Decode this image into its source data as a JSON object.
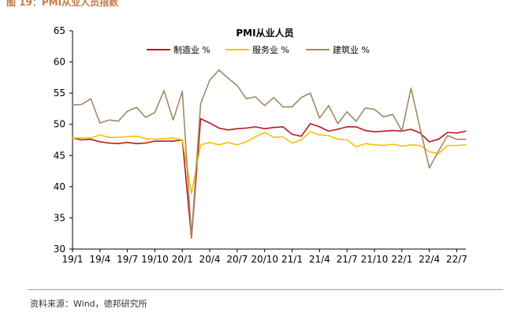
{
  "figure_header": "图 19：PMI从业人员指数",
  "source_note": "资料来源：Wind，德邦研究所",
  "chart_data": {
    "type": "line",
    "title": "PMI从业人员",
    "legend_position": "top-center",
    "grid": false,
    "ylim": [
      30,
      65
    ],
    "yticks": [
      30,
      35,
      40,
      45,
      50,
      55,
      60,
      65
    ],
    "xlim_month_index": [
      0,
      43
    ],
    "xticks": [
      {
        "label": "19/1",
        "month": 0
      },
      {
        "label": "19/4",
        "month": 3
      },
      {
        "label": "19/7",
        "month": 6
      },
      {
        "label": "19/10",
        "month": 9
      },
      {
        "label": "20/1",
        "month": 12
      },
      {
        "label": "20/4",
        "month": 15
      },
      {
        "label": "20/7",
        "month": 18
      },
      {
        "label": "20/10",
        "month": 21
      },
      {
        "label": "21/1",
        "month": 24
      },
      {
        "label": "21/4",
        "month": 27
      },
      {
        "label": "21/7",
        "month": 30
      },
      {
        "label": "21/10",
        "month": 33
      },
      {
        "label": "22/1",
        "month": 36
      },
      {
        "label": "22/4",
        "month": 39
      },
      {
        "label": "22/7",
        "month": 42
      }
    ],
    "x": [
      "19/1",
      "19/2",
      "19/3",
      "19/4",
      "19/5",
      "19/6",
      "19/7",
      "19/8",
      "19/9",
      "19/10",
      "19/11",
      "19/12",
      "20/1",
      "20/2",
      "20/3",
      "20/4",
      "20/5",
      "20/6",
      "20/7",
      "20/8",
      "20/9",
      "20/10",
      "20/11",
      "20/12",
      "21/1",
      "21/2",
      "21/3",
      "21/4",
      "21/5",
      "21/6",
      "21/7",
      "21/8",
      "21/9",
      "21/10",
      "21/11",
      "21/12",
      "22/1",
      "22/2",
      "22/3",
      "22/4",
      "22/5",
      "22/6",
      "22/7",
      "22/8"
    ],
    "series": [
      {
        "name": "制造业 %",
        "color": "#c0141c",
        "values": [
          47.8,
          47.5,
          47.6,
          47.2,
          47.0,
          46.9,
          47.1,
          46.9,
          47.0,
          47.3,
          47.3,
          47.3,
          47.5,
          31.8,
          50.9,
          50.2,
          49.4,
          49.1,
          49.3,
          49.4,
          49.6,
          49.3,
          49.5,
          49.6,
          48.4,
          48.1,
          50.1,
          49.6,
          48.9,
          49.2,
          49.6,
          49.6,
          49.0,
          48.8,
          48.9,
          49.0,
          48.9,
          49.2,
          48.6,
          47.2,
          47.6,
          48.7,
          48.6,
          48.9
        ]
      },
      {
        "name": "服务业 %",
        "color": "#f3c200",
        "values": [
          47.8,
          47.8,
          47.8,
          48.3,
          47.9,
          47.9,
          48.0,
          48.1,
          47.7,
          47.6,
          47.7,
          47.8,
          47.5,
          38.9,
          46.7,
          47.1,
          46.7,
          47.1,
          46.7,
          47.2,
          48.0,
          48.7,
          47.9,
          48.0,
          47.0,
          47.5,
          48.8,
          48.3,
          48.2,
          47.6,
          47.5,
          46.4,
          46.9,
          46.7,
          46.6,
          46.8,
          46.5,
          46.7,
          46.6,
          45.6,
          45.3,
          46.6,
          46.6,
          46.7
        ]
      },
      {
        "name": "建筑业 %",
        "color": "#a08a62",
        "values": [
          53.1,
          53.2,
          54.1,
          50.2,
          50.7,
          50.5,
          52.1,
          52.7,
          51.1,
          51.9,
          55.4,
          50.7,
          55.3,
          32.0,
          53.3,
          57.1,
          58.7,
          57.4,
          56.2,
          54.1,
          54.4,
          53.0,
          54.3,
          52.8,
          52.8,
          54.3,
          55.0,
          51.0,
          53.0,
          50.1,
          52.0,
          50.5,
          52.6,
          52.4,
          51.2,
          51.6,
          48.9,
          55.8,
          49.3,
          43.0,
          45.7,
          48.2,
          47.6,
          47.6
        ]
      }
    ]
  }
}
